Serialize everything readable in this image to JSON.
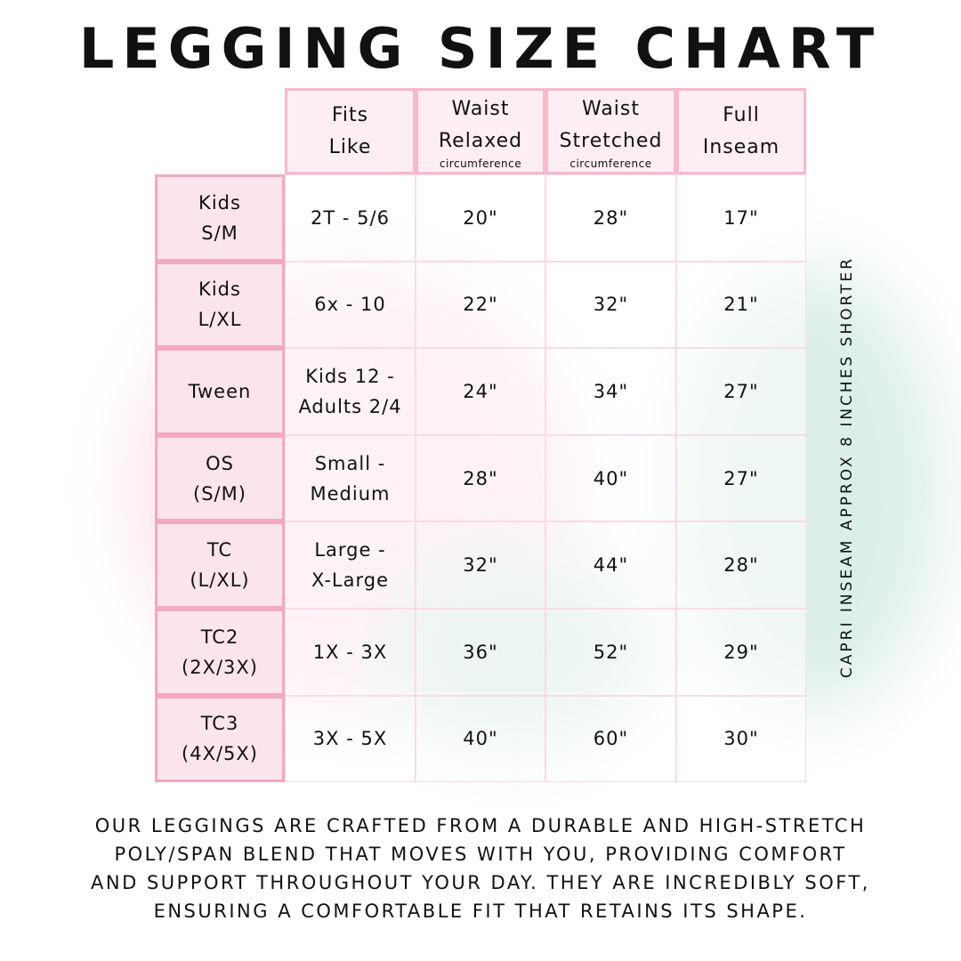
{
  "title": "LEGGING SIZE CHART",
  "side_note": "CAPRI INSEAM APPROX 8 INCHES SHORTER",
  "headers": [
    {
      "line1": "Fits",
      "line2": "Like",
      "sub": ""
    },
    {
      "line1": "Waist",
      "line2": "Relaxed",
      "sub": "circumference"
    },
    {
      "line1": "Waist",
      "line2": "Stretched",
      "sub": "circumference"
    },
    {
      "line1": "Full",
      "line2": "Inseam",
      "sub": ""
    }
  ],
  "rows": [
    {
      "size": [
        "Kids",
        "S/M"
      ],
      "fits": [
        "2T - 5/6"
      ],
      "relaxed": "20\"",
      "stretched": "28\"",
      "inseam": "17\""
    },
    {
      "size": [
        "Kids",
        "L/XL"
      ],
      "fits": [
        "6x - 10"
      ],
      "relaxed": "22\"",
      "stretched": "32\"",
      "inseam": "21\""
    },
    {
      "size": [
        "Tween"
      ],
      "fits": [
        "Kids 12 -",
        "Adults 2/4"
      ],
      "relaxed": "24\"",
      "stretched": "34\"",
      "inseam": "27\""
    },
    {
      "size": [
        "OS",
        "(S/M)"
      ],
      "fits": [
        "Small -",
        "Medium"
      ],
      "relaxed": "28\"",
      "stretched": "40\"",
      "inseam": "27\""
    },
    {
      "size": [
        "TC",
        "(L/XL)"
      ],
      "fits": [
        "Large -",
        "X-Large"
      ],
      "relaxed": "32\"",
      "stretched": "44\"",
      "inseam": "28\""
    },
    {
      "size": [
        "TC2",
        "(2X/3X)"
      ],
      "fits": [
        "1X - 3X"
      ],
      "relaxed": "36\"",
      "stretched": "52\"",
      "inseam": "29\""
    },
    {
      "size": [
        "TC3",
        "(4X/5X)"
      ],
      "fits": [
        "3X - 5X"
      ],
      "relaxed": "40\"",
      "stretched": "60\"",
      "inseam": "30\""
    }
  ],
  "footer": [
    "OUR LEGGINGS ARE CRAFTED FROM A DURABLE AND HIGH-STRETCH",
    "POLY/SPAN BLEND THAT MOVES WITH YOU, PROVIDING COMFORT",
    "AND SUPPORT THROUGHOUT YOUR DAY. THEY ARE INCREDIBLY SOFT,",
    "ENSURING A COMFORTABLE FIT THAT RETAINS ITS SHAPE."
  ],
  "colors": {
    "header_bg": "#fdeef3",
    "header_border": "#f6b9cc",
    "row_header_bg": "#fbe4ec",
    "row_header_border": "#f2a9c1"
  }
}
